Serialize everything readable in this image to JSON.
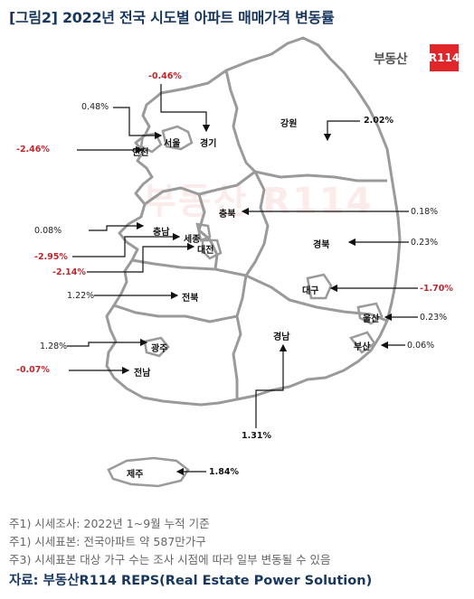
{
  "title": "[그림2] 2022년 전국 시도별 아파트 매매가격 변동률",
  "logo": {
    "text": "부동산",
    "box": "R114"
  },
  "watermark": "부동산 R114",
  "regions": {
    "gyeonggi": {
      "name": "경기",
      "value": "-0.46%"
    },
    "seoul": {
      "name": "서울",
      "value": "0.48%"
    },
    "incheon": {
      "name": "인천",
      "value": "-2.46%"
    },
    "gangwon": {
      "name": "강원",
      "value": "2.02%"
    },
    "chungbuk": {
      "name": "충북",
      "value": "0.18%"
    },
    "chungnam": {
      "name": "충남",
      "value": "0.08%"
    },
    "sejong": {
      "name": "세종",
      "value": "-2.95%"
    },
    "daejeon": {
      "name": "대전",
      "value": "-2.14%"
    },
    "gyeongbuk": {
      "name": "경북",
      "value": "0.23%"
    },
    "jeonbuk": {
      "name": "전북",
      "value": "1.22%"
    },
    "daegu": {
      "name": "대구",
      "value": "-1.70%"
    },
    "ulsan": {
      "name": "울산",
      "value": "0.23%"
    },
    "gwangju": {
      "name": "광주",
      "value": "1.28%"
    },
    "busan": {
      "name": "부산",
      "value": "0.06%"
    },
    "jeonnam": {
      "name": "전남",
      "value": "-0.07%"
    },
    "gyeongnam": {
      "name": "경남",
      "value": "1.31%"
    },
    "jeju": {
      "name": "제주",
      "value": "1.84%"
    }
  },
  "notes": [
    "주1) 시세조사: 2022년 1~9월 누적 기준",
    "주1) 시세표본: 전국아파트 약 587만가구",
    "주3) 시세표본 대상 가구 수는 조사 시점에 따라 일부 변동될 수 있음"
  ],
  "source": "자료: 부동산R114 REPS(Real Estate Power Solution)",
  "colors": {
    "title": "#17375e",
    "negative": "#c0262d",
    "border": "#9a9a9a",
    "accent": "#e0262b"
  }
}
